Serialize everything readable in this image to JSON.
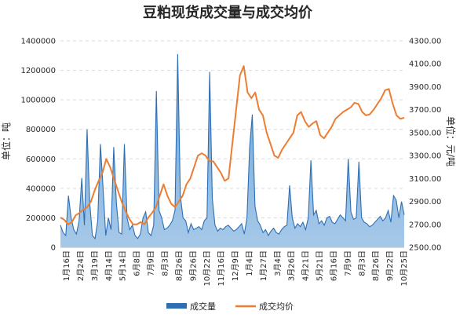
{
  "chart_data": {
    "type": "area+line",
    "title": "豆粕现货成交量与成交均价",
    "y_left": {
      "label": "单位：吨",
      "range": [
        0,
        1400000
      ],
      "ticks": [
        "0",
        "200000",
        "400000",
        "600000",
        "800000",
        "1000000",
        "1200000",
        "1400000"
      ]
    },
    "y_right": {
      "label": "单位：元/吨",
      "range": [
        2500,
        4300
      ],
      "ticks": [
        "2500.00",
        "2700.00",
        "2900.00",
        "3100.00",
        "3300.00",
        "3500.00",
        "3700.00",
        "3900.00",
        "4100.00",
        "4300.00"
      ]
    },
    "x_ticks": [
      "1月16日",
      "2月24日",
      "3月19日",
      "4月14日",
      "5月14日",
      "6月8日",
      "7月9日",
      "8月3日",
      "8月26日",
      "9月26日",
      "10月22日",
      "11月16日",
      "12月9日",
      "1月4日",
      "1月27日",
      "3月4日",
      "3月26日",
      "4月21日",
      "5月21日",
      "6月16日",
      "7月9日",
      "8月3日",
      "8月26日",
      "9月22日",
      "10月25日"
    ],
    "grid": true,
    "legend_position": "bottom",
    "series": [
      {
        "name": "成交量",
        "axis": "left",
        "color": "#2e6eb3",
        "values": [
          150000,
          100000,
          80000,
          350000,
          200000,
          120000,
          90000,
          180000,
          470000,
          150000,
          800000,
          300000,
          80000,
          60000,
          180000,
          700000,
          400000,
          80000,
          200000,
          120000,
          680000,
          300000,
          100000,
          90000,
          700000,
          200000,
          120000,
          150000,
          80000,
          60000,
          90000,
          200000,
          240000,
          100000,
          80000,
          150000,
          1060000,
          250000,
          200000,
          120000,
          130000,
          150000,
          180000,
          250000,
          1310000,
          350000,
          200000,
          180000,
          100000,
          160000,
          120000,
          130000,
          140000,
          120000,
          180000,
          200000,
          1190000,
          330000,
          150000,
          110000,
          130000,
          120000,
          140000,
          150000,
          130000,
          110000,
          120000,
          140000,
          160000,
          90000,
          200000,
          680000,
          900000,
          280000,
          180000,
          150000,
          100000,
          120000,
          80000,
          110000,
          130000,
          100000,
          90000,
          120000,
          140000,
          150000,
          420000,
          200000,
          130000,
          160000,
          140000,
          170000,
          120000,
          200000,
          590000,
          220000,
          250000,
          160000,
          180000,
          150000,
          200000,
          210000,
          170000,
          160000,
          190000,
          220000,
          200000,
          180000,
          600000,
          240000,
          190000,
          200000,
          580000,
          200000,
          170000,
          160000,
          140000,
          150000,
          170000,
          190000,
          210000,
          180000,
          200000,
          250000,
          170000,
          350000,
          320000,
          200000,
          310000,
          220000
        ]
      },
      {
        "name": "成交均价",
        "axis": "right",
        "color": "#ed7d31",
        "values": [
          2760,
          2740,
          2700,
          2720,
          2780,
          2800,
          2830,
          2850,
          2900,
          3000,
          3080,
          3150,
          3270,
          3200,
          3100,
          3000,
          2900,
          2820,
          2750,
          2700,
          2700,
          2720,
          2700,
          2760,
          2800,
          2850,
          2950,
          3050,
          2950,
          2880,
          2850,
          2900,
          2950,
          3050,
          3100,
          3200,
          3300,
          3320,
          3300,
          3250,
          3250,
          3200,
          3150,
          3080,
          3100,
          3400,
          3700,
          4000,
          4080,
          3850,
          3800,
          3850,
          3700,
          3650,
          3500,
          3400,
          3300,
          3280,
          3350,
          3400,
          3450,
          3500,
          3650,
          3680,
          3600,
          3550,
          3580,
          3600,
          3480,
          3450,
          3500,
          3550,
          3620,
          3650,
          3680,
          3700,
          3720,
          3760,
          3750,
          3680,
          3650,
          3660,
          3700,
          3750,
          3800,
          3870,
          3880,
          3750,
          3650,
          3620,
          3630
        ]
      }
    ]
  }
}
